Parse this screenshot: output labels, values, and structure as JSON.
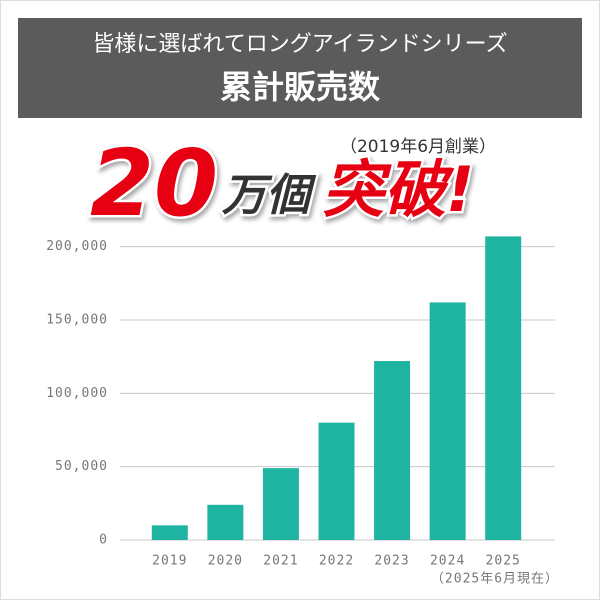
{
  "header": {
    "line1": "皆様に選ばれてロングアイランドシリーズ",
    "line2": "累計販売数"
  },
  "headline": {
    "founded": "（2019年6月創業）",
    "number": "20",
    "unit": "万個",
    "breakthrough": "突破!"
  },
  "chart_data": {
    "type": "bar",
    "categories": [
      "2019",
      "2020",
      "2021",
      "2022",
      "2023",
      "2024",
      "2025"
    ],
    "values": [
      10000,
      24000,
      49000,
      80000,
      122000,
      162000,
      207000
    ],
    "color": "#1fb4a1",
    "ylim": [
      0,
      210000
    ],
    "yticks": [
      0,
      {
        "value": 50000,
        "label": "50,000"
      },
      {
        "value": 100000,
        "label": "100,000"
      },
      {
        "value": 150000,
        "label": "150,000"
      },
      {
        "value": 200000,
        "label": "200,000"
      }
    ],
    "grid": true,
    "annotation": "（2025年6月現在）"
  }
}
